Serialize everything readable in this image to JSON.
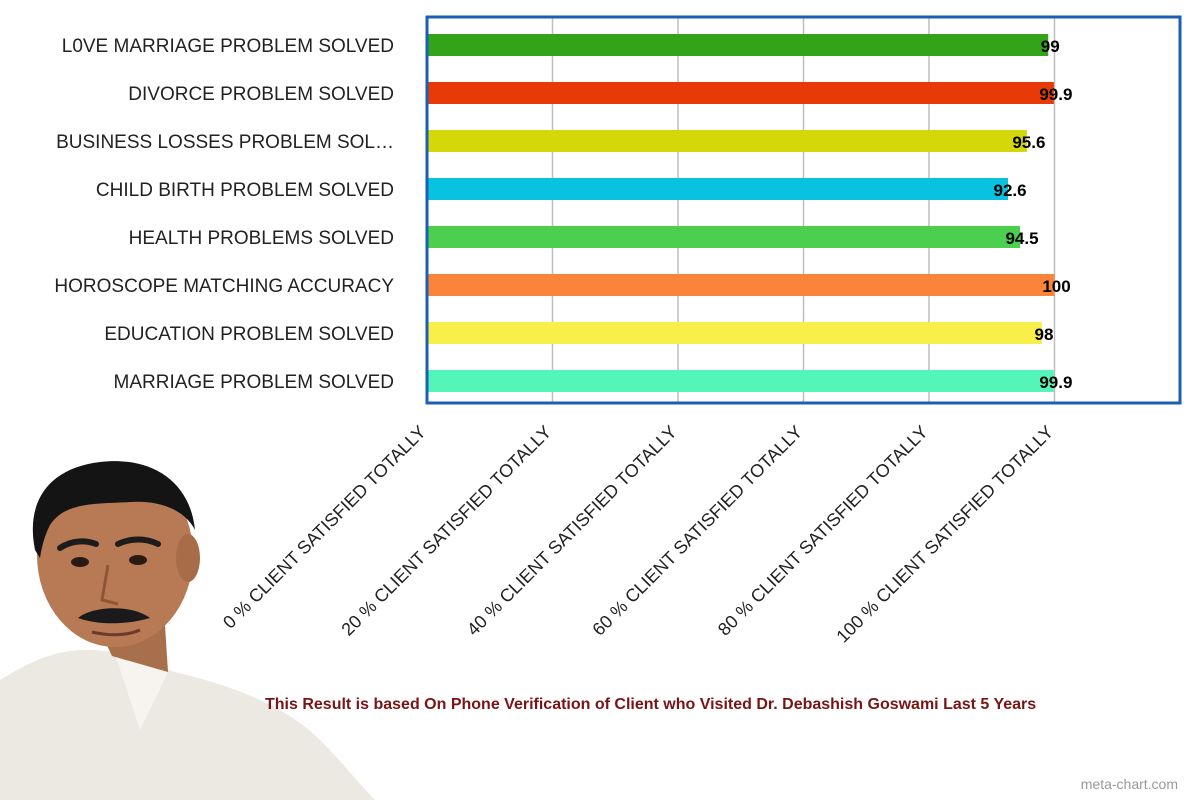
{
  "chart_data": {
    "type": "bar",
    "orientation": "horizontal",
    "categories": [
      "L0VE MARRIAGE PROBLEM SOLVED",
      "DIVORCE PROBLEM SOLVED",
      "BUSINESS LOSSES PROBLEM SOL…",
      "CHILD BIRTH PROBLEM SOLVED",
      "HEALTH PROBLEMS SOLVED",
      "HOROSCOPE MATCHING ACCURACY",
      "EDUCATION PROBLEM SOLVED",
      "MARRIAGE PROBLEM SOLVED"
    ],
    "values": [
      99,
      99.9,
      95.6,
      92.6,
      94.5,
      100,
      98,
      99.9
    ],
    "value_labels": [
      "99",
      "99.9",
      "95.6",
      "92.6",
      "94.5",
      "100",
      "98",
      "99.9"
    ],
    "colors": [
      "#33a31a",
      "#e83a06",
      "#d4d80a",
      "#08c2e0",
      "#4ccf4f",
      "#fa843a",
      "#f9ef4a",
      "#53f5b8"
    ],
    "xlim": [
      0,
      120
    ],
    "x_ticks": [
      0,
      20,
      40,
      60,
      80,
      100
    ],
    "x_tick_labels": [
      "0 % CLIENT SATISFIED TOTALLY",
      "20 % CLIENT SATISFIED TOTALLY",
      "40 % CLIENT SATISFIED TOTALLY",
      "60 % CLIENT SATISFIED TOTALLY",
      "80 % CLIENT SATISFIED TOTALLY",
      "100 % CLIENT SATISFIED TOTALLY"
    ],
    "grid": true,
    "frame_color": "#1a5fb4",
    "title": "",
    "xlabel": "",
    "ylabel": ""
  },
  "footnote": "This Result is based On Phone Verification of Client who Visited Dr. Debashish Goswami Last 5 Years",
  "credit": "meta-chart.com"
}
